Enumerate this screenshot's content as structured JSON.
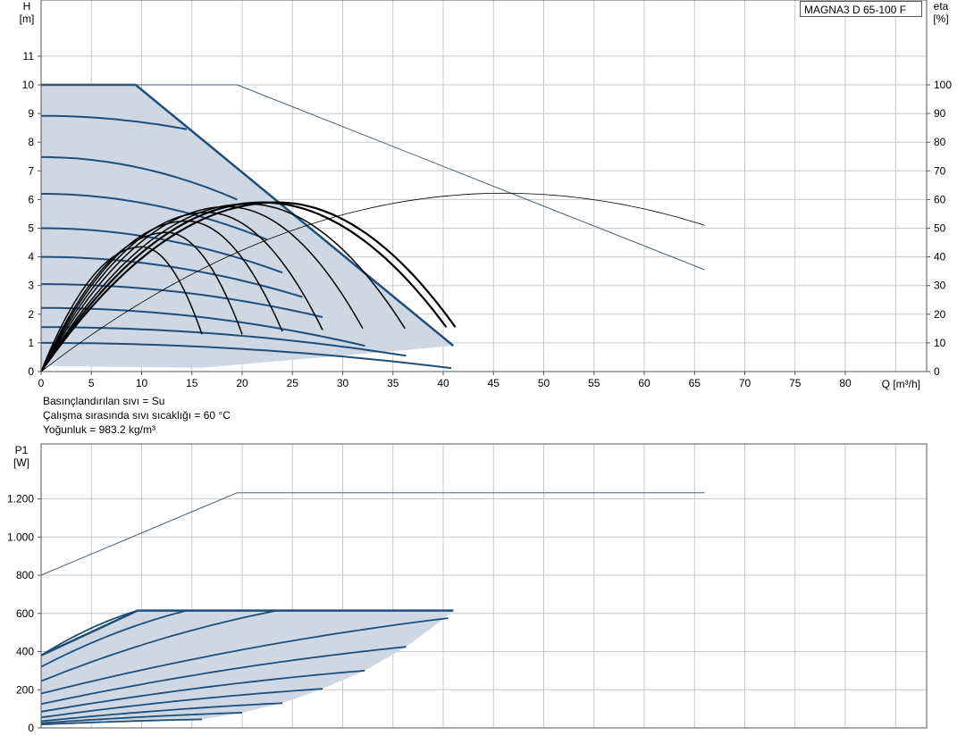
{
  "model_label": "MAGNA3 D 65-100 F",
  "notes": [
    "Basınçlandırılan sıvı = Su",
    "Çalışma sırasında sıvı sıcaklığı = 60 °C",
    "Yoğunluk = 983.2 kg/m³"
  ],
  "colors": {
    "band_fill": "#cdd8e4",
    "curve_blue": "#1f4e79",
    "curve_black": "#000000",
    "line_gray": "#4a5f74",
    "grid": "#c8c8c8"
  },
  "chart_data": [
    {
      "type": "line",
      "x_axis": {
        "label": "Q [m³/h]",
        "range": [
          0,
          88
        ],
        "ticks": [
          0,
          5,
          10,
          15,
          20,
          25,
          30,
          35,
          40,
          45,
          50,
          55,
          60,
          65,
          70,
          75,
          80
        ]
      },
      "y_axis_left": {
        "label_line1": "H",
        "label_line2": "[m]",
        "range": [
          0,
          12
        ],
        "ticks": [
          0,
          1,
          2,
          3,
          4,
          5,
          6,
          7,
          8,
          9,
          10,
          11
        ]
      },
      "y_axis_right": {
        "label_line1": "eta",
        "label_line2": "[%]",
        "range": [
          0,
          120
        ],
        "ticks": [
          0,
          10,
          20,
          30,
          40,
          50,
          60,
          70,
          80,
          90,
          100
        ]
      },
      "grid": true,
      "operating_band_outline": [
        [
          0,
          10
        ],
        [
          9.4,
          10
        ],
        [
          41,
          0.9
        ],
        [
          16,
          0.13
        ],
        [
          0,
          0.2
        ]
      ],
      "speed_curves_H": [
        {
          "h0": 10.0,
          "qmax": 9.4
        },
        {
          "h0": 8.92,
          "qmax": 14.5
        },
        {
          "h0": 7.48,
          "qmax": 19.5
        },
        {
          "h0": 6.2,
          "qmax": 22.5
        },
        {
          "h0": 5.0,
          "qmax": 24.0
        },
        {
          "h0": 4.0,
          "qmax": 26.0
        },
        {
          "h0": 3.05,
          "qmax": 28.0
        },
        {
          "h0": 2.22,
          "qmax": 32.2
        },
        {
          "h0": 1.55,
          "qmax": 36.3
        },
        {
          "h0": 1.0,
          "qmax": 40.8
        }
      ],
      "speed_curves_H_end_heads": [
        10.0,
        8.45,
        6.0,
        4.6,
        3.45,
        2.6,
        1.9,
        0.9,
        0.55,
        0.12
      ],
      "efficiency_curves": [
        {
          "eta_max": 43.5,
          "q_peak": 10.0,
          "q_end": 16.0,
          "eta_end": 13
        },
        {
          "eta_max": 48.5,
          "q_peak": 12.5,
          "q_end": 20.0,
          "eta_end": 13
        },
        {
          "eta_max": 52.5,
          "q_peak": 14.5,
          "q_end": 24.0,
          "eta_end": 14
        },
        {
          "eta_max": 55.5,
          "q_peak": 16.5,
          "q_end": 28.0,
          "eta_end": 14.5
        },
        {
          "eta_max": 57.5,
          "q_peak": 18.5,
          "q_end": 32.0,
          "eta_end": 15
        },
        {
          "eta_max": 58.5,
          "q_peak": 20.5,
          "q_end": 36.2,
          "eta_end": 15
        },
        {
          "eta_max": 59.0,
          "q_peak": 22.0,
          "q_end": 40.3,
          "eta_end": 15.5
        },
        {
          "eta_max": 59.0,
          "q_peak": 23.5,
          "q_end": 41.2,
          "eta_end": 15.5
        }
      ],
      "max_curve_H": [
        [
          0,
          10
        ],
        [
          19.5,
          10
        ],
        [
          66,
          3.55
        ]
      ],
      "max_curve_eta": {
        "eta_max": 62.2,
        "q_peak": 46.0,
        "q_end": 66.0,
        "eta_end": 51
      }
    },
    {
      "type": "line",
      "x_axis": {
        "range": [
          0,
          88
        ]
      },
      "y_axis_left": {
        "label_line1": "P1",
        "label_line2": "[W]",
        "range": [
          0,
          1400
        ],
        "ticks": [
          0,
          200,
          400,
          600,
          800,
          1000,
          1200
        ],
        "tick_labels": [
          "0",
          "200",
          "400",
          "600",
          "800",
          "1.000",
          "1.200"
        ]
      },
      "grid": true,
      "operating_band_outline": [
        [
          0,
          380
        ],
        [
          9.6,
          615
        ],
        [
          41,
          615
        ],
        [
          40,
          570
        ],
        [
          36.3,
          425
        ],
        [
          32.2,
          300
        ],
        [
          28,
          205
        ],
        [
          24,
          130
        ],
        [
          20,
          80
        ],
        [
          16,
          45
        ],
        [
          0,
          20
        ]
      ],
      "power_curves": [
        {
          "p0": 380,
          "qmax": 9.6,
          "pmax": 615
        },
        {
          "p0": 320,
          "qmax": 14.5,
          "pmax": 615
        },
        {
          "p0": 245,
          "qmax": 23.5,
          "pmax": 615
        },
        {
          "p0": 180,
          "qmax": 40.5,
          "pmax": 575
        },
        {
          "p0": 125,
          "qmax": 36.3,
          "pmax": 425
        },
        {
          "p0": 85,
          "qmax": 32.2,
          "pmax": 300
        },
        {
          "p0": 55,
          "qmax": 28.0,
          "pmax": 205
        },
        {
          "p0": 35,
          "qmax": 24.0,
          "pmax": 130
        },
        {
          "p0": 25,
          "qmax": 20.0,
          "pmax": 80
        },
        {
          "p0": 18,
          "qmax": 16.0,
          "pmax": 45
        }
      ],
      "max_power_outline": [
        [
          9.6,
          615
        ],
        [
          41,
          615
        ]
      ],
      "max_curve_P1": [
        [
          0,
          800
        ],
        [
          19.5,
          1232
        ],
        [
          66,
          1232
        ]
      ]
    }
  ]
}
